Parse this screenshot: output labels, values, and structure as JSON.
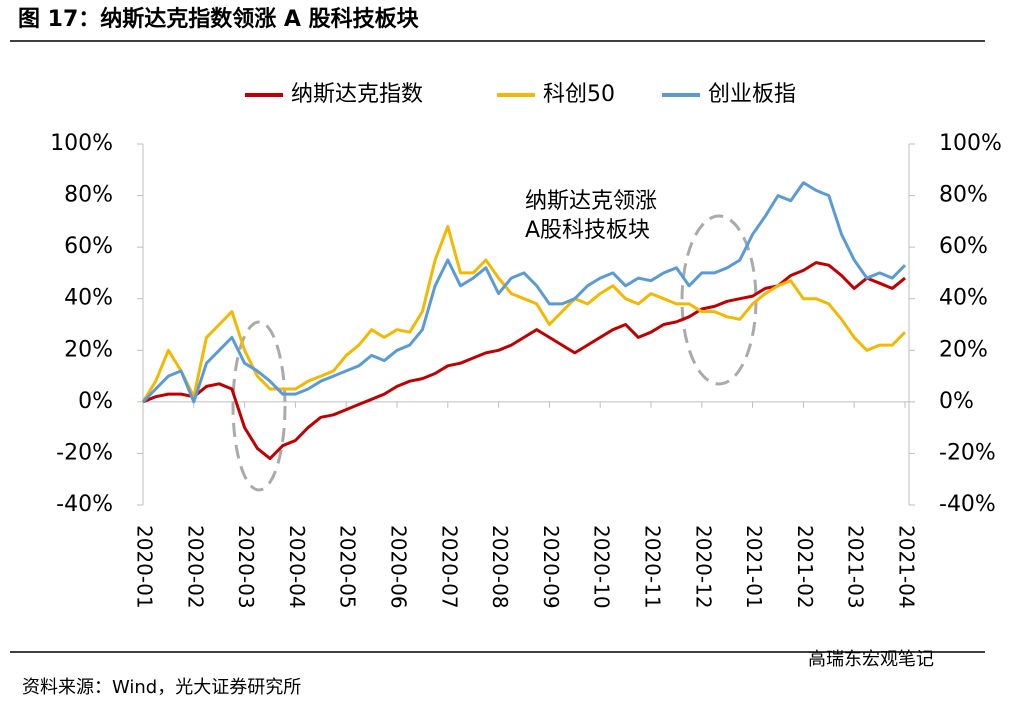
{
  "chart_data": {
    "type": "line",
    "title": "图 17：纳斯达克指数领涨 A 股科技板块",
    "source": "资料来源：Wind，光大证券研究所",
    "watermark": "高瑞东宏观笔记",
    "annotation": [
      "纳斯达克领涨",
      "A股科技板块"
    ],
    "categories": [
      "2020-01",
      null,
      null,
      null,
      "2020-02",
      null,
      null,
      null,
      "2020-03",
      null,
      null,
      null,
      "2020-04",
      null,
      null,
      null,
      "2020-05",
      null,
      null,
      null,
      "2020-06",
      null,
      null,
      null,
      "2020-07",
      null,
      null,
      null,
      "2020-08",
      null,
      null,
      null,
      "2020-09",
      null,
      null,
      null,
      "2020-10",
      null,
      null,
      null,
      "2020-11",
      null,
      null,
      null,
      "2020-12",
      null,
      null,
      null,
      "2021-01",
      null,
      null,
      null,
      "2021-02",
      null,
      null,
      null,
      "2021-03",
      null,
      null,
      null,
      "2021-04"
    ],
    "series": [
      {
        "name": "纳斯达克指数",
        "color": "#c00000",
        "values": [
          0,
          2,
          3,
          3,
          2,
          6,
          7,
          5,
          -10,
          -18,
          -22,
          -17,
          -15,
          -10,
          -6,
          -5,
          -3,
          -1,
          1,
          3,
          6,
          8,
          9,
          11,
          14,
          15,
          17,
          19,
          20,
          22,
          25,
          28,
          25,
          22,
          19,
          22,
          25,
          28,
          30,
          25,
          27,
          30,
          31,
          33,
          36,
          37,
          39,
          40,
          41,
          44,
          45,
          49,
          51,
          54,
          53,
          49,
          44,
          48,
          46,
          44,
          48
        ]
      },
      {
        "name": "科创50",
        "color": "#f5b800",
        "values": [
          0,
          8,
          20,
          12,
          2,
          25,
          30,
          35,
          20,
          10,
          5,
          5,
          5,
          8,
          10,
          12,
          18,
          22,
          28,
          25,
          28,
          27,
          35,
          55,
          68,
          50,
          50,
          55,
          48,
          42,
          40,
          38,
          30,
          35,
          40,
          38,
          42,
          45,
          40,
          38,
          42,
          40,
          38,
          38,
          35,
          35,
          33,
          32,
          38,
          42,
          45,
          47,
          40,
          40,
          38,
          32,
          25,
          20,
          22,
          22,
          27
        ]
      },
      {
        "name": "创业板指",
        "color": "#5b9bd5",
        "values": [
          0,
          5,
          10,
          12,
          0,
          15,
          20,
          25,
          15,
          12,
          8,
          3,
          3,
          5,
          8,
          10,
          12,
          14,
          18,
          16,
          20,
          22,
          28,
          45,
          55,
          45,
          48,
          52,
          42,
          48,
          50,
          45,
          38,
          38,
          40,
          45,
          48,
          50,
          45,
          48,
          47,
          50,
          52,
          45,
          50,
          50,
          52,
          55,
          65,
          72,
          80,
          78,
          85,
          82,
          80,
          65,
          55,
          48,
          50,
          48,
          53
        ]
      }
    ],
    "ylim": [
      -40,
      100
    ],
    "yticks": [
      {
        "value": -40,
        "label": "-40%"
      },
      {
        "value": -20,
        "label": "-20%"
      },
      {
        "value": 0,
        "label": "0%"
      },
      {
        "value": 20,
        "label": "20%"
      },
      {
        "value": 40,
        "label": "40%"
      },
      {
        "value": 60,
        "label": "60%"
      },
      {
        "value": 80,
        "label": "80%"
      },
      {
        "value": 100,
        "label": "100%"
      }
    ],
    "y2lim": [
      -40,
      100
    ],
    "y2ticks": [
      {
        "value": -40,
        "label": "-40%"
      },
      {
        "value": -20,
        "label": "-20%"
      },
      {
        "value": 0,
        "label": "0%"
      },
      {
        "value": 20,
        "label": "20%"
      },
      {
        "value": 40,
        "label": "40%"
      },
      {
        "value": 60,
        "label": "60%"
      },
      {
        "value": 80,
        "label": "80%"
      },
      {
        "value": 100,
        "label": "100%"
      }
    ]
  }
}
